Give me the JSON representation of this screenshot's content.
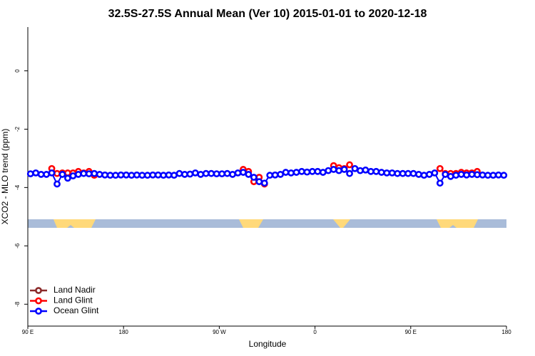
{
  "chart_data": {
    "type": "line",
    "title": "32.5S-27.5S Annual Mean (Ver 10)   2015-01-01 to 2020-12-18",
    "xlabel": "Longitude",
    "ylabel": "XCO2 - MLO trend (ppm)",
    "xlim": [
      90,
      540
    ],
    "ylim": [
      -8.75,
      1.5
    ],
    "xticks": [
      {
        "value": 90,
        "label": "90 E"
      },
      {
        "value": 180,
        "label": "180"
      },
      {
        "value": 270,
        "label": "90 W"
      },
      {
        "value": 360,
        "label": "0"
      },
      {
        "value": 450,
        "label": "90 E"
      },
      {
        "value": 540,
        "label": "180"
      }
    ],
    "yticks": [
      0,
      -2,
      -4,
      -6,
      -8
    ],
    "legend": "bottom-left",
    "x": [
      92.5,
      97.5,
      102.5,
      107.5,
      112.5,
      117.5,
      122.5,
      127.5,
      132.5,
      137.5,
      142.5,
      147.5,
      152.5,
      157.5,
      162.5,
      167.5,
      172.5,
      177.5,
      182.5,
      187.5,
      192.5,
      197.5,
      202.5,
      207.5,
      212.5,
      217.5,
      222.5,
      227.5,
      232.5,
      237.5,
      242.5,
      247.5,
      252.5,
      257.5,
      262.5,
      267.5,
      272.5,
      277.5,
      282.5,
      287.5,
      292.5,
      297.5,
      302.5,
      307.5,
      312.5,
      317.5,
      322.5,
      327.5,
      332.5,
      337.5,
      342.5,
      347.5,
      352.5,
      357.5,
      362.5,
      367.5,
      372.5,
      377.5,
      382.5,
      387.5,
      392.5,
      397.5,
      402.5,
      407.5,
      412.5,
      417.5,
      422.5,
      427.5,
      432.5,
      437.5,
      442.5,
      447.5,
      452.5,
      457.5,
      462.5,
      467.5,
      472.5,
      477.5,
      482.5,
      487.5,
      492.5,
      497.5,
      502.5,
      507.5,
      512.5,
      517.5,
      522.5,
      527.5,
      532.5,
      537.5
    ],
    "series": [
      {
        "name": "Land Nadir",
        "color": "#8b2a2a",
        "values": [
          null,
          null,
          null,
          null,
          null,
          null,
          null,
          null,
          null,
          null,
          null,
          null,
          null,
          null,
          null,
          null,
          null,
          null,
          null,
          null,
          null,
          null,
          null,
          null,
          null,
          null,
          null,
          null,
          null,
          null,
          null,
          null,
          null,
          null,
          null,
          null,
          null,
          null,
          null,
          null,
          null,
          null,
          null,
          null,
          null,
          null,
          null,
          null,
          null,
          null,
          null,
          null,
          null,
          null,
          null,
          null,
          null,
          null,
          null,
          null,
          null,
          null,
          null,
          null,
          null,
          null,
          null,
          null,
          null,
          null,
          null,
          null,
          null,
          null,
          null,
          null,
          null,
          null,
          null,
          null,
          null,
          null,
          null,
          null,
          null,
          null,
          null,
          null,
          null,
          null
        ]
      },
      {
        "name": "Land Glint",
        "color": "#ff0000",
        "values": [
          null,
          null,
          null,
          null,
          -3.35,
          -3.52,
          -3.5,
          -3.5,
          -3.5,
          -3.45,
          -3.5,
          -3.45,
          -3.58,
          null,
          null,
          null,
          null,
          null,
          null,
          null,
          null,
          null,
          null,
          null,
          null,
          null,
          null,
          null,
          null,
          null,
          null,
          null,
          null,
          null,
          null,
          null,
          null,
          null,
          null,
          null,
          -3.38,
          -3.45,
          -3.8,
          -3.65,
          -3.88,
          null,
          null,
          null,
          null,
          null,
          null,
          null,
          null,
          null,
          null,
          null,
          null,
          -3.25,
          -3.32,
          -3.35,
          -3.22,
          null,
          null,
          null,
          null,
          null,
          null,
          null,
          null,
          null,
          null,
          null,
          null,
          null,
          null,
          null,
          null,
          -3.35,
          -3.52,
          -3.52,
          -3.52,
          -3.48,
          -3.5,
          -3.5,
          -3.45,
          null,
          null,
          null,
          null,
          null
        ]
      },
      {
        "name": "Ocean Glint",
        "color": "#0000ff",
        "values": [
          -3.53,
          -3.5,
          -3.55,
          -3.55,
          -3.5,
          -3.88,
          -3.55,
          -3.68,
          -3.6,
          -3.55,
          -3.52,
          -3.53,
          -3.52,
          -3.55,
          -3.57,
          -3.58,
          -3.58,
          -3.57,
          -3.57,
          -3.58,
          -3.57,
          -3.58,
          -3.58,
          -3.57,
          -3.57,
          -3.58,
          -3.57,
          -3.58,
          -3.52,
          -3.55,
          -3.54,
          -3.5,
          -3.55,
          -3.52,
          -3.52,
          -3.53,
          -3.53,
          -3.52,
          -3.55,
          -3.5,
          -3.48,
          -3.55,
          -3.65,
          -3.8,
          -3.85,
          -3.58,
          -3.57,
          -3.55,
          -3.48,
          -3.5,
          -3.48,
          -3.45,
          -3.47,
          -3.45,
          -3.45,
          -3.48,
          -3.42,
          -3.38,
          -3.42,
          -3.38,
          -3.52,
          -3.35,
          -3.42,
          -3.4,
          -3.45,
          -3.45,
          -3.48,
          -3.5,
          -3.5,
          -3.52,
          -3.52,
          -3.52,
          -3.52,
          -3.55,
          -3.58,
          -3.55,
          -3.5,
          -3.85,
          -3.55,
          -3.62,
          -3.58,
          -3.55,
          -3.57,
          -3.55,
          -3.56,
          -3.57,
          -3.58,
          -3.58,
          -3.57,
          -3.58
        ]
      }
    ]
  }
}
